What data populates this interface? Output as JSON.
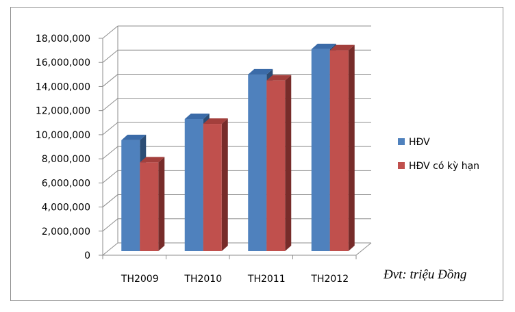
{
  "chart_data": {
    "type": "bar",
    "categories": [
      "TH2009",
      "TH2010",
      "TH2011",
      "TH2012"
    ],
    "series": [
      {
        "name": "HĐV",
        "values": [
          9550000,
          11300000,
          15000000,
          17100000
        ]
      },
      {
        "name": "HĐV có kỳ hạn",
        "values": [
          7700000,
          10900000,
          14500000,
          17000000
        ]
      }
    ],
    "ylim": [
      0,
      18000000
    ],
    "yticks": [
      0,
      2000000,
      4000000,
      6000000,
      8000000,
      10000000,
      12000000,
      14000000,
      16000000,
      18000000
    ],
    "ytick_labels": [
      "0",
      "2,000,000",
      "4,000,000",
      "6,000,000",
      "8,000,000",
      "10,000,000",
      "12,000,000",
      "14,000,000",
      "16,000,000",
      "18,000,000"
    ],
    "legend_position": "right",
    "grid": true,
    "style": "3d-clustered-column",
    "annotation": "Đvt: triệu Đồng"
  },
  "colors": {
    "series1_front": "#4f81bd",
    "series1_side": "#2c4d75",
    "series1_top": "#3b6ba8",
    "series2_front": "#c0504d",
    "series2_side": "#772c2a",
    "series2_top": "#a33f3c",
    "grid": "#8c8c8c",
    "wall": "#ffffff"
  }
}
